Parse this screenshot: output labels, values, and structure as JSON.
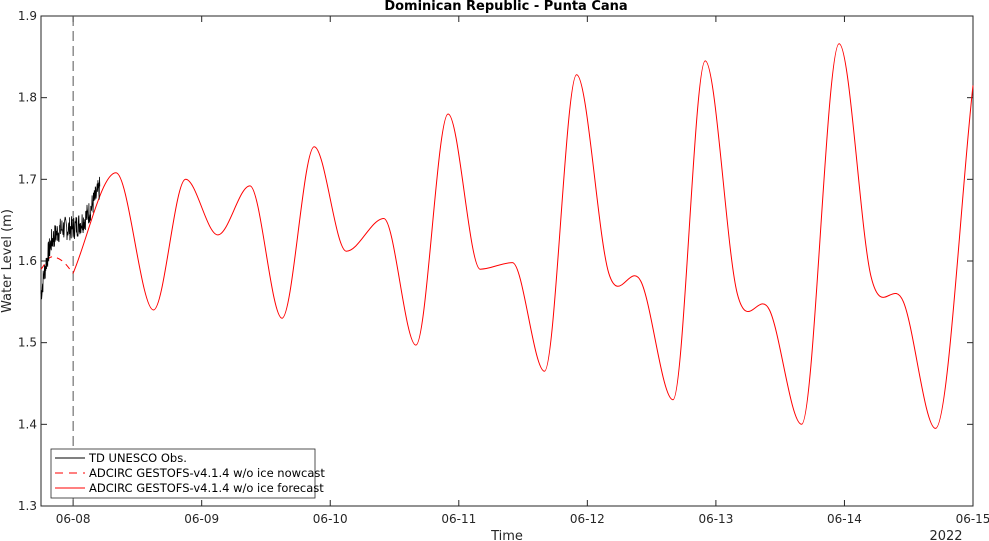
{
  "chart_data": {
    "type": "line",
    "title": "Dominican Republic - Punta Cana",
    "xlabel": "Time",
    "ylabel": "Water Level (m)",
    "x_tick_labels": [
      "06-08",
      "06-09",
      "06-10",
      "06-11",
      "06-12",
      "06-13",
      "06-14",
      "06-15"
    ],
    "x_secondary_label": "2022",
    "xlim": [
      "2022-06-07 18:00",
      "2022-06-15 00:00"
    ],
    "ylim": [
      1.3,
      1.9
    ],
    "y_ticks": [
      1.3,
      1.4,
      1.5,
      1.6,
      1.7,
      1.8,
      1.9
    ],
    "grid": false,
    "nowcast_forecast_divider": "2022-06-08 00:00",
    "legend": {
      "placement": "bottom-left",
      "entries": [
        {
          "label": "TD UNESCO Obs.",
          "color": "#000000",
          "style": "solid"
        },
        {
          "label": "ADCIRC GESTOFS-v4.1.4 w/o ice nowcast",
          "color": "#ff0000",
          "style": "dashed"
        },
        {
          "label": "ADCIRC GESTOFS-v4.1.4 w/o ice forecast",
          "color": "#ff0000",
          "style": "solid"
        }
      ]
    },
    "series": [
      {
        "name": "TD UNESCO Obs.",
        "color": "#000000",
        "x": [
          "06-07 18:00",
          "06-07 19:00",
          "06-07 20:00",
          "06-07 21:00",
          "06-07 22:00",
          "06-07 23:00",
          "06-08 00:00",
          "06-08 01:00",
          "06-08 02:00",
          "06-08 03:00",
          "06-08 04:00",
          "06-08 05:00"
        ],
        "y": [
          1.56,
          1.6,
          1.625,
          1.635,
          1.64,
          1.64,
          1.64,
          1.645,
          1.65,
          1.66,
          1.675,
          1.69
        ]
      },
      {
        "name": "ADCIRC GESTOFS-v4.1.4 w/o ice nowcast",
        "color": "#ff0000",
        "x": [
          "06-07 18:00",
          "06-07 20:00",
          "06-07 22:00",
          "06-08 00:00"
        ],
        "y": [
          1.59,
          1.605,
          1.6,
          1.585
        ]
      },
      {
        "name": "ADCIRC GESTOFS-v4.1.4 w/o ice forecast",
        "color": "#ff0000",
        "x": [
          "06-08 00:00",
          "06-08 08:00",
          "06-08 15:00",
          "06-08 21:00",
          "06-09 03:00",
          "06-09 09:00",
          "06-09 15:00",
          "06-09 21:00",
          "06-10 03:00",
          "06-10 10:00",
          "06-10 16:00",
          "06-10 22:00",
          "06-11 04:00",
          "06-11 10:00",
          "06-11 16:00",
          "06-11 22:00",
          "06-12 04:00",
          "06-12 10:00",
          "06-12 16:00",
          "06-12 22:00",
          "06-13 04:00",
          "06-13 10:00",
          "06-13 16:00",
          "06-13 23:00",
          "06-14 05:00",
          "06-14 11:00",
          "06-14 17:00",
          "06-15 00:00"
        ],
        "y": [
          1.585,
          1.708,
          1.54,
          1.7,
          1.632,
          1.692,
          1.53,
          1.74,
          1.612,
          1.652,
          1.497,
          1.78,
          1.59,
          1.598,
          1.465,
          1.828,
          1.585,
          1.575,
          1.43,
          1.845,
          1.56,
          1.54,
          1.4,
          1.866,
          1.58,
          1.55,
          1.395,
          1.815
        ]
      }
    ]
  }
}
